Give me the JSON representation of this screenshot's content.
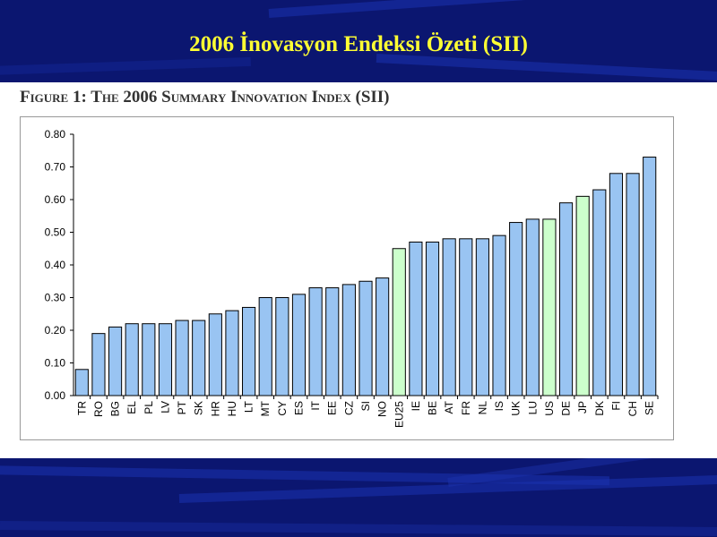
{
  "slide": {
    "title": "2006 İnovasyon Endeksi Özeti (SII)",
    "caption": "Figure 1: The 2006 Summary Innovation Index (SII)"
  },
  "colors": {
    "band": "#0b1670",
    "title_text": "#ffff33",
    "bar_default": "#99c4f2",
    "bar_highlight": "#ccffcc",
    "bar_outline": "#000000"
  },
  "chart_data": {
    "type": "bar",
    "title": "",
    "xlabel": "",
    "ylabel": "",
    "ylim": [
      0,
      0.8
    ],
    "yticks": [
      "0.00",
      "0.10",
      "0.20",
      "0.30",
      "0.40",
      "0.50",
      "0.60",
      "0.70",
      "0.80"
    ],
    "grid": false,
    "categories": [
      "TR",
      "RO",
      "BG",
      "EL",
      "PL",
      "LV",
      "PT",
      "SK",
      "HR",
      "HU",
      "LT",
      "MT",
      "CY",
      "ES",
      "IT",
      "EE",
      "CZ",
      "SI",
      "NO",
      "EU25",
      "IE",
      "BE",
      "AT",
      "FR",
      "NL",
      "IS",
      "UK",
      "LU",
      "US",
      "DE",
      "JP",
      "DK",
      "FI",
      "CH",
      "SE"
    ],
    "values": [
      0.08,
      0.19,
      0.21,
      0.22,
      0.22,
      0.22,
      0.23,
      0.23,
      0.25,
      0.26,
      0.27,
      0.3,
      0.3,
      0.31,
      0.33,
      0.33,
      0.34,
      0.35,
      0.36,
      0.45,
      0.47,
      0.47,
      0.48,
      0.48,
      0.48,
      0.49,
      0.53,
      0.54,
      0.54,
      0.59,
      0.61,
      0.63,
      0.68,
      0.68,
      0.73
    ],
    "highlighted": [
      "EU25",
      "US",
      "JP"
    ]
  }
}
